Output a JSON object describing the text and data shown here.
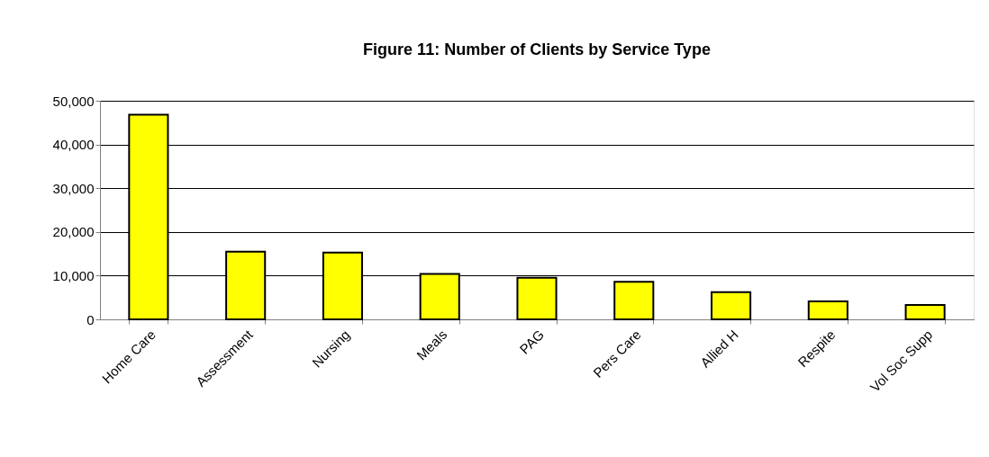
{
  "chart_data": {
    "type": "bar",
    "title": "Figure 11: Number of Clients by Service Type",
    "categories": [
      "Home Care",
      "Assessment",
      "Nursing",
      "Meals",
      "PAG",
      "Pers Care",
      "Allied H",
      "Respite",
      "Vol Soc Supp"
    ],
    "values": [
      46800,
      15500,
      15300,
      10400,
      9500,
      8600,
      6200,
      4100,
      3300
    ],
    "color": "#ffff00",
    "ylim": [
      0,
      50000
    ],
    "yticks": [
      {
        "value": 0,
        "label": "0"
      },
      {
        "value": 10000,
        "label": "10,000"
      },
      {
        "value": 20000,
        "label": "20,000"
      },
      {
        "value": 30000,
        "label": "30,000"
      },
      {
        "value": 40000,
        "label": "40,000"
      },
      {
        "value": 50000,
        "label": "50,000"
      }
    ],
    "grid": "y"
  }
}
